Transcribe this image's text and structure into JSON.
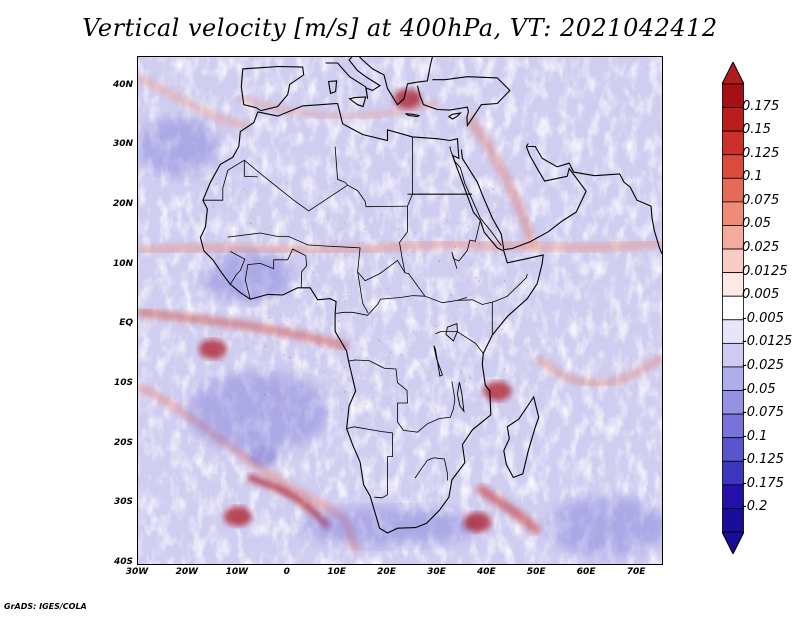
{
  "title": "Vertical velocity [m/s] at 400hPa, VT: 2021042412",
  "credit": "GrADS: IGES/COLA",
  "map": {
    "projection": "latlon",
    "lon_range": [
      -30,
      75
    ],
    "lat_range": [
      -40,
      45
    ],
    "lat_ticks": [
      {
        "value": 40,
        "label": "40N"
      },
      {
        "value": 30,
        "label": "30N"
      },
      {
        "value": 20,
        "label": "20N"
      },
      {
        "value": 10,
        "label": "10N"
      },
      {
        "value": 0,
        "label": "EQ"
      },
      {
        "value": -10,
        "label": "10S"
      },
      {
        "value": -20,
        "label": "20S"
      },
      {
        "value": -30,
        "label": "30S"
      },
      {
        "value": -40,
        "label": "40S"
      }
    ],
    "lon_ticks": [
      {
        "value": -30,
        "label": "30W"
      },
      {
        "value": -20,
        "label": "20W"
      },
      {
        "value": -10,
        "label": "10W"
      },
      {
        "value": 0,
        "label": "0"
      },
      {
        "value": 10,
        "label": "10E"
      },
      {
        "value": 20,
        "label": "20E"
      },
      {
        "value": 30,
        "label": "30E"
      },
      {
        "value": 40,
        "label": "40E"
      },
      {
        "value": 50,
        "label": "50E"
      },
      {
        "value": 60,
        "label": "60E"
      },
      {
        "value": 70,
        "label": "70E"
      }
    ],
    "features": [
      {
        "name": "ascent-band-south-atlantic",
        "lon": -10,
        "lat": -32,
        "sign": "positive"
      },
      {
        "name": "ascent-band-south-africa",
        "lon": 38,
        "lat": -33,
        "sign": "positive"
      },
      {
        "name": "ascent-cell-mozambique-channel",
        "lon": 42,
        "lat": -11,
        "sign": "positive"
      },
      {
        "name": "ascent-cell-mediterranean",
        "lon": 24,
        "lat": 38,
        "sign": "positive"
      },
      {
        "name": "itcz-band-atlantic",
        "lon": -15,
        "lat": -4,
        "sign": "positive"
      },
      {
        "name": "subsidence-south-atlantic",
        "lon": -5,
        "lat": -22,
        "sign": "negative"
      }
    ]
  },
  "colorbar": {
    "levels": [
      {
        "label": "0.175",
        "color": "#a50f15"
      },
      {
        "label": "0.15",
        "color": "#bb1c1c"
      },
      {
        "label": "0.125",
        "color": "#cd2f2a"
      },
      {
        "label": "0.1",
        "color": "#dc4a3d"
      },
      {
        "label": "0.075",
        "color": "#e66a58"
      },
      {
        "label": "0.05",
        "color": "#ee8b79"
      },
      {
        "label": "0.025",
        "color": "#f4ab9c"
      },
      {
        "label": "0.0125",
        "color": "#f9cdc3"
      },
      {
        "label": "0.005",
        "color": "#fde9e4"
      },
      {
        "label": "-0.005",
        "color": "#ffffff"
      },
      {
        "label": "-0.0125",
        "color": "#e7e6f8"
      },
      {
        "label": "-0.025",
        "color": "#cdcbf1"
      },
      {
        "label": "-0.05",
        "color": "#b0aeea"
      },
      {
        "label": "-0.075",
        "color": "#9592e2"
      },
      {
        "label": "-0.1",
        "color": "#7773d8"
      },
      {
        "label": "-0.125",
        "color": "#5955cc"
      },
      {
        "label": "-0.175",
        "color": "#3b36bd"
      },
      {
        "label": "-0.2",
        "color": "#2410a8"
      }
    ],
    "top_color": "#b11c1c",
    "bottom_color": "#1a0d9a"
  }
}
